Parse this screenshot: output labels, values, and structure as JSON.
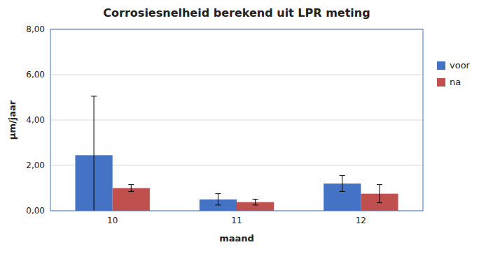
{
  "chart_data": {
    "type": "bar",
    "title": "Corrosiesnelheid berekend uit LPR meting",
    "xlabel": "maand",
    "ylabel": "μm/jaar",
    "categories": [
      "10",
      "11",
      "12"
    ],
    "series": [
      {
        "name": "voor",
        "color": "#4472C4",
        "values": [
          2.45,
          0.5,
          1.2
        ],
        "errors": [
          2.6,
          0.25,
          0.35
        ]
      },
      {
        "name": "na",
        "color": "#C0504D",
        "values": [
          1.0,
          0.38,
          0.75
        ],
        "errors": [
          0.15,
          0.13,
          0.4
        ]
      }
    ],
    "ylim": [
      0,
      8.0
    ],
    "yticks": [
      {
        "value": 0.0,
        "label": "0,00"
      },
      {
        "value": 2.0,
        "label": "2,00"
      },
      {
        "value": 4.0,
        "label": "4,00"
      },
      {
        "value": 6.0,
        "label": "6,00"
      },
      {
        "value": 8.0,
        "label": "8,00"
      }
    ],
    "grid": true,
    "legend": "right"
  }
}
